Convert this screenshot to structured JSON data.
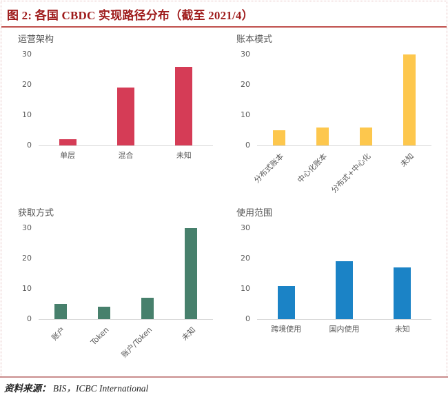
{
  "header": {
    "title": "图 2:  各国 CBDC 实现路径分布（截至 2021/4）"
  },
  "footer": {
    "source_label": "资料来源：",
    "source_text": "BIS，ICBC International"
  },
  "colors": {
    "title_text": "#9E1A1A",
    "title_rule": "#C0504D",
    "bottom_rule": "#C98C8C",
    "dotted_border": "#E3BCBC",
    "axis_line": "#D9D9D9",
    "tick_text": "#595959",
    "series_red": "#D53C56",
    "series_yellow": "#FDC74D",
    "series_green": "#47806C",
    "series_blue": "#1B83C6"
  },
  "chart_data": [
    {
      "type": "bar",
      "title": "运营架构",
      "categories": [
        "单层",
        "混合",
        "未知"
      ],
      "values": [
        2,
        19,
        26
      ],
      "color": "#D53C56",
      "ylim": [
        0,
        30
      ],
      "yticks": [
        0,
        10,
        20,
        30
      ],
      "xlabel_rotation": 0,
      "grid": false,
      "legend": false
    },
    {
      "type": "bar",
      "title": "账本模式",
      "categories": [
        "分布式账本",
        "中心化账本",
        "分布式+中心化",
        "未知"
      ],
      "values": [
        5,
        6,
        6,
        30
      ],
      "color": "#FDC74D",
      "ylim": [
        0,
        30
      ],
      "yticks": [
        0,
        10,
        20,
        30
      ],
      "xlabel_rotation": 45,
      "grid": false,
      "legend": false
    },
    {
      "type": "bar",
      "title": "获取方式",
      "categories": [
        "账户",
        "Token",
        "账户/Token",
        "未知"
      ],
      "values": [
        5,
        4,
        7,
        30
      ],
      "color": "#47806C",
      "ylim": [
        0,
        30
      ],
      "yticks": [
        0,
        10,
        20,
        30
      ],
      "xlabel_rotation": 45,
      "grid": false,
      "legend": false
    },
    {
      "type": "bar",
      "title": "使用范围",
      "categories": [
        "跨境使用",
        "国内使用",
        "未知"
      ],
      "values": [
        11,
        19,
        17
      ],
      "color": "#1B83C6",
      "ylim": [
        0,
        30
      ],
      "yticks": [
        0,
        10,
        20,
        30
      ],
      "xlabel_rotation": 0,
      "grid": false,
      "legend": false
    }
  ]
}
